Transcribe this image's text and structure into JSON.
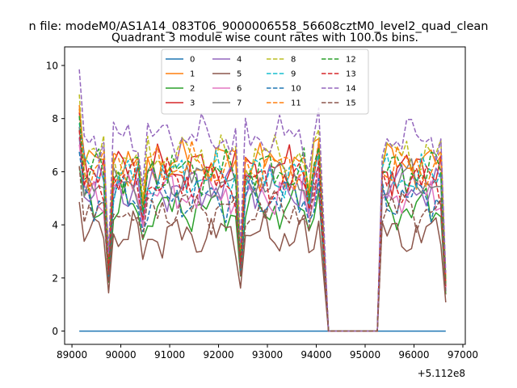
{
  "chart_data": {
    "type": "line",
    "suptitle": "n file: modeM0/AS1A14_083T06_9000006558_56608cztM0_level2_quad_clean",
    "title": "Quadrant 3 module wise count rates with 100.0s bins.",
    "xlabel": "",
    "ylabel": "",
    "offset_text": "+5.112e8",
    "xlim": [
      88850,
      97050
    ],
    "ylim": [
      -0.5,
      10.7
    ],
    "xticks": [
      89000,
      90000,
      91000,
      92000,
      93000,
      94000,
      95000,
      96000,
      97000
    ],
    "xtick_labels": [
      "89000",
      "90000",
      "91000",
      "92000",
      "93000",
      "94000",
      "95000",
      "96000",
      "97000"
    ],
    "yticks": [
      0,
      2,
      4,
      6,
      8,
      10
    ],
    "ytick_labels": [
      "0",
      "2",
      "4",
      "6",
      "8",
      "10"
    ],
    "legend_position": "upper center",
    "x_segments": [
      {
        "start": 89150,
        "end": 94050,
        "step": 100
      },
      {
        "start": 94250,
        "end": 95250,
        "step": 100
      },
      {
        "start": 95350,
        "end": 96650,
        "step": 100
      }
    ],
    "series": [
      {
        "name": "0",
        "color": "#1f77b4",
        "dash": "solid",
        "level": 0.0,
        "phase": 0
      },
      {
        "name": "1",
        "color": "#ff7f0e",
        "dash": "solid",
        "level": 6.3,
        "phase": 1
      },
      {
        "name": "2",
        "color": "#2ca02c",
        "dash": "solid",
        "level": 4.6,
        "phase": 2
      },
      {
        "name": "3",
        "color": "#d62728",
        "dash": "solid",
        "level": 6.1,
        "phase": 3
      },
      {
        "name": "4",
        "color": "#9467bd",
        "dash": "solid",
        "level": 5.4,
        "phase": 4
      },
      {
        "name": "5",
        "color": "#8c564b",
        "dash": "solid",
        "level": 3.6,
        "phase": 5
      },
      {
        "name": "6",
        "color": "#e377c2",
        "dash": "solid",
        "level": 5.2,
        "phase": 6
      },
      {
        "name": "7",
        "color": "#7f7f7f",
        "dash": "solid",
        "level": 5.7,
        "phase": 7
      },
      {
        "name": "8",
        "color": "#bcbd22",
        "dash": "dashed",
        "level": 6.6,
        "phase": 8
      },
      {
        "name": "9",
        "color": "#17becf",
        "dash": "dashed",
        "level": 5.8,
        "phase": 9
      },
      {
        "name": "10",
        "color": "#1f77b4",
        "dash": "dashed",
        "level": 5.0,
        "phase": 10
      },
      {
        "name": "11",
        "color": "#ff7f0e",
        "dash": "dashed",
        "level": 6.2,
        "phase": 11
      },
      {
        "name": "12",
        "color": "#2ca02c",
        "dash": "dashed",
        "level": 6.0,
        "phase": 12
      },
      {
        "name": "13",
        "color": "#d62728",
        "dash": "dashed",
        "level": 5.6,
        "phase": 13
      },
      {
        "name": "14",
        "color": "#9467bd",
        "dash": "dashed",
        "level": 7.3,
        "phase": 14
      },
      {
        "name": "15",
        "color": "#8c564b",
        "dash": "dashed",
        "level": 4.6,
        "phase": 15
      }
    ],
    "dips": [
      {
        "x": 89750,
        "factor": 0.4
      },
      {
        "x": 90450,
        "factor": 0.75
      },
      {
        "x": 92450,
        "factor": 0.45
      },
      {
        "x": 93850,
        "factor": 0.82
      }
    ],
    "peaks": [
      {
        "x": 89150,
        "factor": 1.35
      },
      {
        "x": 94050,
        "factor": 1.15
      },
      {
        "x": 96650,
        "factor": 0.3
      }
    ]
  }
}
